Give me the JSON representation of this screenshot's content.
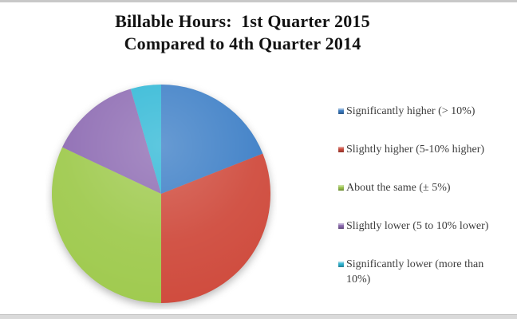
{
  "frame": {
    "top_bar_color": "#c8c8c8",
    "bottom_bar_color": "#dadada",
    "background": "#ffffff"
  },
  "title": {
    "line1": "Billable Hours:  1st Quarter 2015",
    "line2": "Compared to 4th Quarter 2014"
  },
  "chart_data": {
    "type": "pie",
    "title": "Billable Hours: 1st Quarter 2015 Compared to 4th Quarter 2014",
    "start_angle_deg": 0,
    "direction": "clockwise",
    "legend_position": "right",
    "slices": [
      {
        "label": "Significantly higher (> 10%)",
        "value_pct": 19,
        "color": "#3C7EC6"
      },
      {
        "label": "Slightly higher (5-10% higher)",
        "value_pct": 31,
        "color": "#CF4A3C"
      },
      {
        "label": "About the same (± 5%)",
        "value_pct": 32,
        "color": "#9FCA4E"
      },
      {
        "label": "Slightly lower (5 to 10% lower)",
        "value_pct": 13.5,
        "color": "#8E6CB3"
      },
      {
        "label": "Significantly lower (more than 10%)",
        "value_pct": 4.5,
        "color": "#30B8D6"
      }
    ]
  }
}
